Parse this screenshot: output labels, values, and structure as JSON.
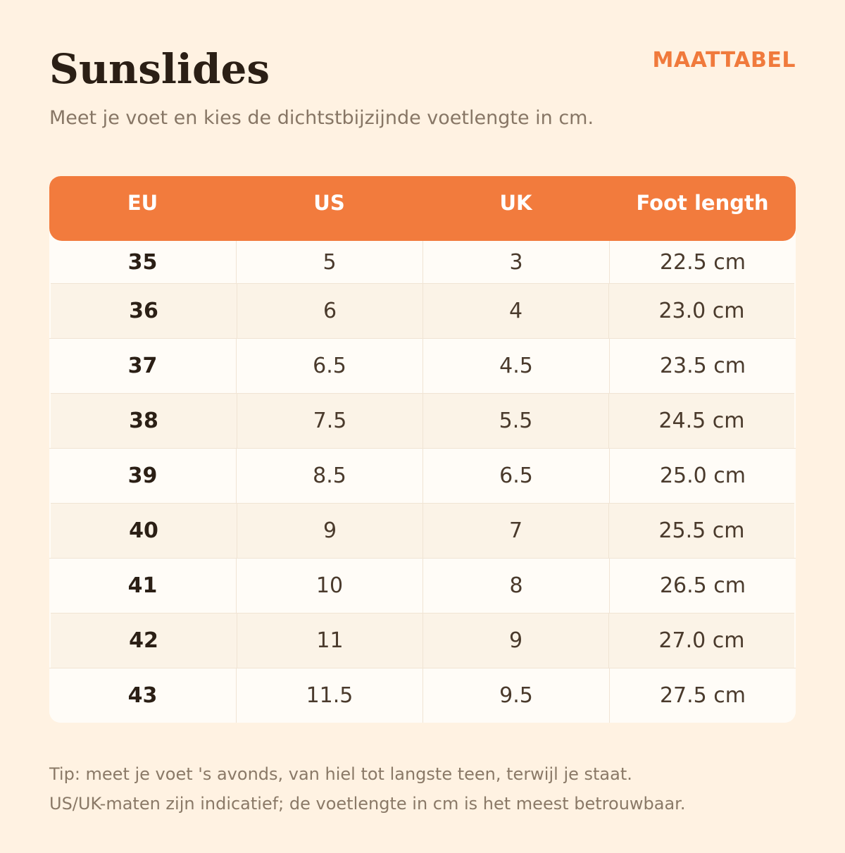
{
  "header": {
    "title": "Sunslides",
    "badge": "MAATTABEL",
    "subtitle": "Meet je voet en kies de dichtstbijzijnde voetlengte in cm."
  },
  "table": {
    "columns": [
      "EU",
      "US",
      "UK",
      "Foot length"
    ],
    "rows": [
      [
        "35",
        "5",
        "3",
        "22.5 cm"
      ],
      [
        "36",
        "6",
        "4",
        "23.0 cm"
      ],
      [
        "37",
        "6.5",
        "4.5",
        "23.5 cm"
      ],
      [
        "38",
        "7.5",
        "5.5",
        "24.5 cm"
      ],
      [
        "39",
        "8.5",
        "6.5",
        "25.0 cm"
      ],
      [
        "40",
        "9",
        "7",
        "25.5 cm"
      ],
      [
        "41",
        "10",
        "8",
        "26.5 cm"
      ],
      [
        "42",
        "11",
        "9",
        "27.0 cm"
      ],
      [
        "43",
        "11.5",
        "9.5",
        "27.5 cm"
      ]
    ]
  },
  "footer": {
    "tip_line1": "Tip: meet je voet 's avonds, van hiel tot langste teen, terwijl je staat.",
    "tip_line2": "US/UK-maten zijn indicatief; de voetlengte in cm is het meest betrouwbaar."
  },
  "colors": {
    "background": "#fff2e2",
    "accent": "#f27b3d",
    "title": "#2b1f15",
    "muted": "#877665"
  }
}
